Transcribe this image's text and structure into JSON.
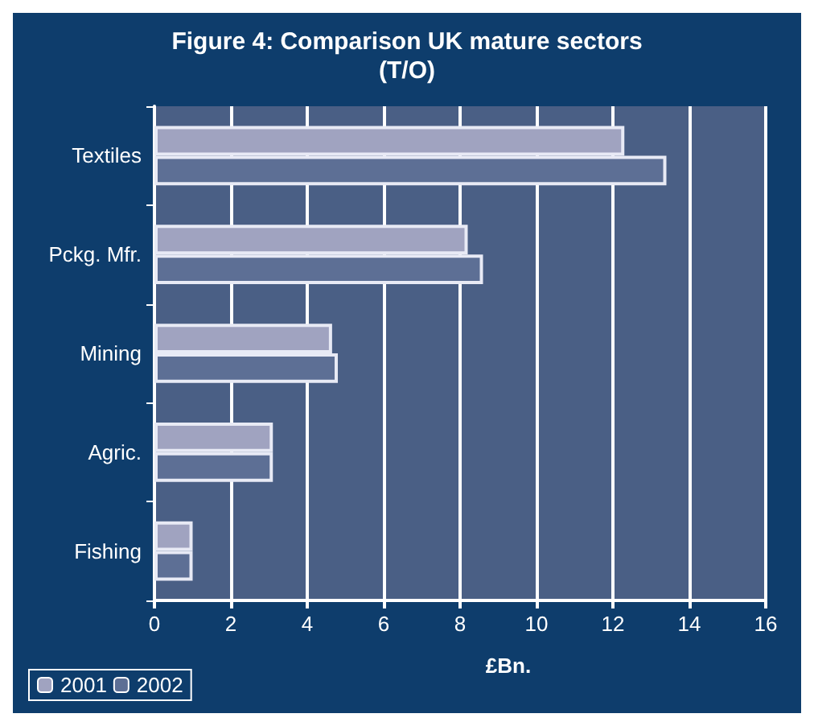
{
  "chart_data": {
    "type": "bar",
    "orientation": "horizontal",
    "title": "Figure 4: Comparison UK mature sectors\n(T/O)",
    "xlabel": "£Bn.",
    "categories": [
      "Textiles",
      "Pckg. Mfr.",
      "Mining",
      "Agric.",
      "Fishing"
    ],
    "series": [
      {
        "name": "2001",
        "color": "#a0a3c0",
        "values": [
          12.3,
          8.2,
          4.65,
          3.1,
          1.0
        ]
      },
      {
        "name": "2002",
        "color": "#5d6f95",
        "values": [
          13.4,
          8.6,
          4.8,
          3.1,
          1.0
        ]
      }
    ],
    "xlim": [
      0,
      16
    ],
    "xticks": [
      0,
      2,
      4,
      6,
      8,
      10,
      12,
      14,
      16
    ],
    "grid": "x",
    "legend": "bottom left"
  }
}
